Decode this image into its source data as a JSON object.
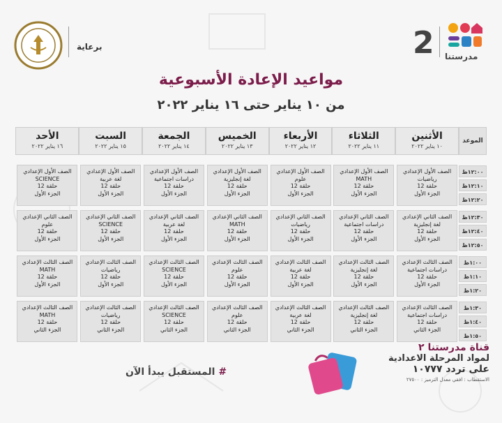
{
  "header": {
    "brand_number": "2",
    "brand_name": "مدرستنا",
    "sponsor_label": "برعاية"
  },
  "title": "مواعيد الإعادة الأسبوعية",
  "subtitle": "من ١٠ يناير حتى ١٦ يناير ٢٠٢٢",
  "table": {
    "slot_header": "الموعد",
    "days": [
      {
        "name": "الأثنين",
        "date": "١٠ يناير ٢٠٢٢"
      },
      {
        "name": "الثلاثاء",
        "date": "١١ يناير ٢٠٢٢"
      },
      {
        "name": "الأربعاء",
        "date": "١٢ يناير ٢٠٢٢"
      },
      {
        "name": "الخميس",
        "date": "١٣ يناير ٢٠٢٢"
      },
      {
        "name": "الجمعة",
        "date": "١٤ يناير ٢٠٢٢"
      },
      {
        "name": "السبت",
        "date": "١٥ يناير ٢٠٢٢"
      },
      {
        "name": "الأحد",
        "date": "١٦ يناير ٢٠٢٢"
      }
    ],
    "groups": [
      {
        "times": [
          "١٢:٠٠ظ",
          "١٢:١٠ظ",
          "١٢:٢٠ظ"
        ],
        "cells": [
          [
            "الصف الأول الإعدادي",
            "رياضيات",
            "حلقة 12",
            "الجزء الأول"
          ],
          [
            "الصف الأول الإعدادي",
            "MATH",
            "حلقة 12",
            "الجزء الأول"
          ],
          [
            "الصف الأول الإعدادي",
            "علوم",
            "حلقة 12",
            "الجزء الأول"
          ],
          [
            "الصف الأول الإعدادي",
            "لغة إنجليزية",
            "حلقة 12",
            "الجزء الأول"
          ],
          [
            "الصف الأول الإعدادي",
            "دراسات اجتماعية",
            "حلقة 12",
            "الجزء الأول"
          ],
          [
            "الصف الأول الإعدادي",
            "لغة عربية",
            "حلقة 12",
            "الجزء الأول"
          ],
          [
            "الصف الأول الإعدادي",
            "SCIENCE",
            "حلقة 12",
            "الجزء الأول"
          ]
        ]
      },
      {
        "times": [
          "١٢:٣٠ظ",
          "١٢:٤٠ظ",
          "١٢:٥٠ظ"
        ],
        "cells": [
          [
            "الصف الثاني الإعدادي",
            "لغة إنجليزية",
            "حلقة 12",
            "الجزء الأول"
          ],
          [
            "الصف الثاني الإعدادي",
            "دراسات اجتماعية",
            "حلقة 12",
            "الجزء الأول"
          ],
          [
            "الصف الثاني الإعدادي",
            "رياضيات",
            "حلقة 12",
            "الجزء الأول"
          ],
          [
            "الصف الثاني الإعدادي",
            "MATH",
            "حلقة 12",
            "الجزء الأول"
          ],
          [
            "الصف الثاني الإعدادي",
            "لغة عربية",
            "حلقة 12",
            "الجزء الأول"
          ],
          [
            "الصف الثاني الإعدادي",
            "SCIENCE",
            "حلقة 12",
            "الجزء الأول"
          ],
          [
            "الصف الثاني الإعدادي",
            "علوم",
            "حلقة 12",
            "الجزء الأول"
          ]
        ]
      },
      {
        "times": [
          "١:٠٠ظ",
          "١:١٠ظ",
          "١:٢٠ظ"
        ],
        "cells": [
          [
            "الصف الثالث الإعدادي",
            "دراسات اجتماعية",
            "حلقة 12",
            "الجزء الأول"
          ],
          [
            "الصف الثالث الإعدادي",
            "لغة إنجليزية",
            "حلقة 12",
            "الجزء الأول"
          ],
          [
            "الصف الثالث الإعدادي",
            "لغة عربية",
            "حلقة 12",
            "الجزء الأول"
          ],
          [
            "الصف الثالث الإعدادي",
            "علوم",
            "حلقة 12",
            "الجزء الأول"
          ],
          [
            "الصف الثالث الإعدادي",
            "SCIENCE",
            "حلقة 12",
            "الجزء الأول"
          ],
          [
            "الصف الثالث الإعدادي",
            "رياضيات",
            "حلقة 12",
            "الجزء الأول"
          ],
          [
            "الصف الثالث الإعدادي",
            "MATH",
            "حلقة 12",
            "الجزء الأول"
          ]
        ]
      },
      {
        "times": [
          "١:٣٠ظ",
          "١:٤٠ظ",
          "١:٥٠ظ"
        ],
        "cells": [
          [
            "الصف الثالث الإعدادي",
            "دراسات اجتماعية",
            "حلقة 12",
            "الجزء الثاني"
          ],
          [
            "الصف الثالث الإعدادي",
            "لغة إنجليزية",
            "حلقة 12",
            "الجزء الثاني"
          ],
          [
            "الصف الثالث الإعدادي",
            "لغة عربية",
            "حلقة 12",
            "الجزء الثاني"
          ],
          [
            "الصف الثالث الإعدادي",
            "علوم",
            "حلقة 12",
            "الجزء الثاني"
          ],
          [
            "الصف الثالث الإعدادي",
            "SCIENCE",
            "حلقة 12",
            "الجزء الثاني"
          ],
          [
            "الصف الثالث الإعدادي",
            "رياضيات",
            "حلقة 12",
            "الجزء الثاني"
          ],
          [
            "الصف الثالث الإعدادي",
            "MATH",
            "حلقة 12",
            "الجزء الثاني"
          ]
        ]
      }
    ]
  },
  "footer": {
    "slogan_hash": "#",
    "slogan": "المستقبل يبدأ الآن",
    "channel_line": "قناة مدرستنا ٢",
    "channel_subject": "لمواد المرحلة الاعدادية",
    "frequency_line": "على تردد ١٠٧٧٧",
    "reception_line": "الاستقطاب : افقي معدل الترميز : ٢٧٥٠٠"
  },
  "colors": {
    "accent": "#7b1c4a",
    "cell_bg": "#e3e3e3",
    "background": "#f6f6f6"
  }
}
